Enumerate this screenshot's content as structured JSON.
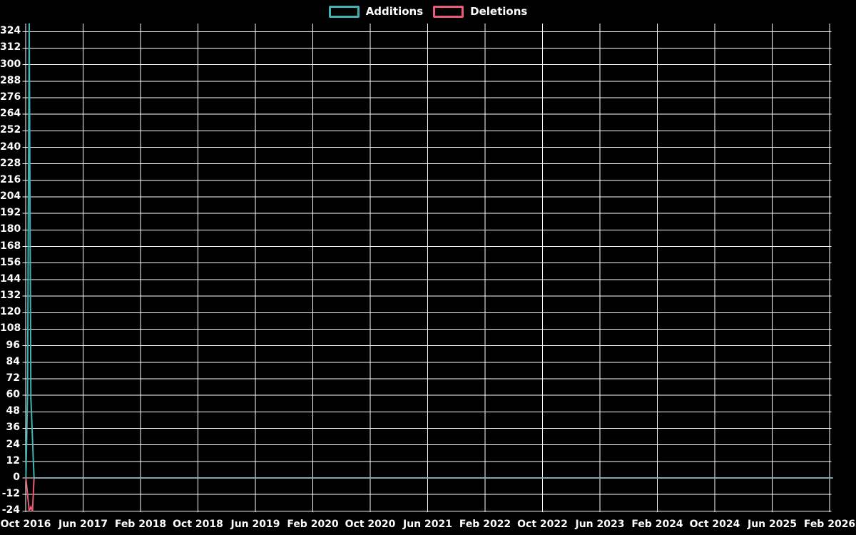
{
  "legend": {
    "items": [
      {
        "label": "Additions",
        "color": "#40b4b4"
      },
      {
        "label": "Deletions",
        "color": "#ea5b77"
      }
    ]
  },
  "chart_data": {
    "type": "line",
    "title": "",
    "xlabel": "",
    "ylabel": "",
    "background": "#000000",
    "grid": true,
    "grid_color": "#ffffff",
    "text_color": "#ffffff",
    "legend_position": "top-center",
    "ylim": [
      -24,
      330
    ],
    "y_tick_step": 12,
    "y_ticks": [
      324,
      312,
      300,
      288,
      276,
      264,
      252,
      240,
      228,
      216,
      204,
      192,
      180,
      168,
      156,
      144,
      132,
      120,
      108,
      96,
      84,
      72,
      60,
      48,
      36,
      24,
      12,
      0,
      -12,
      -24
    ],
    "x_tick_interval_months": 8,
    "x_tick_labels": [
      "Oct 2016",
      "Jun 2017",
      "Feb 2018",
      "Oct 2018",
      "Jun 2019",
      "Feb 2020",
      "Oct 2020",
      "Jun 2021",
      "Feb 2022",
      "Oct 2022",
      "Jun 2023",
      "Feb 2024",
      "Oct 2024",
      "Jun 2025",
      "Feb 2026"
    ],
    "x_range": [
      "2016-10-01",
      "2026-02-15"
    ],
    "zero_overlap_color": "#87a5ad",
    "series": [
      {
        "name": "Additions",
        "color": "#40b4b4",
        "points": [
          [
            "2016-10-02",
            0
          ],
          [
            "2016-10-09",
            62
          ],
          [
            "2016-10-16",
            330
          ],
          [
            "2016-10-23",
            58
          ],
          [
            "2016-10-30",
            28
          ],
          [
            "2016-11-06",
            0
          ],
          [
            "2026-02-15",
            0
          ]
        ]
      },
      {
        "name": "Deletions",
        "color": "#ea5b77",
        "points": [
          [
            "2016-10-02",
            0
          ],
          [
            "2016-10-09",
            -12
          ],
          [
            "2016-10-16",
            -24
          ],
          [
            "2016-10-23",
            -21
          ],
          [
            "2016-10-30",
            -24
          ],
          [
            "2016-11-06",
            0
          ],
          [
            "2026-02-15",
            0
          ]
        ]
      }
    ]
  }
}
